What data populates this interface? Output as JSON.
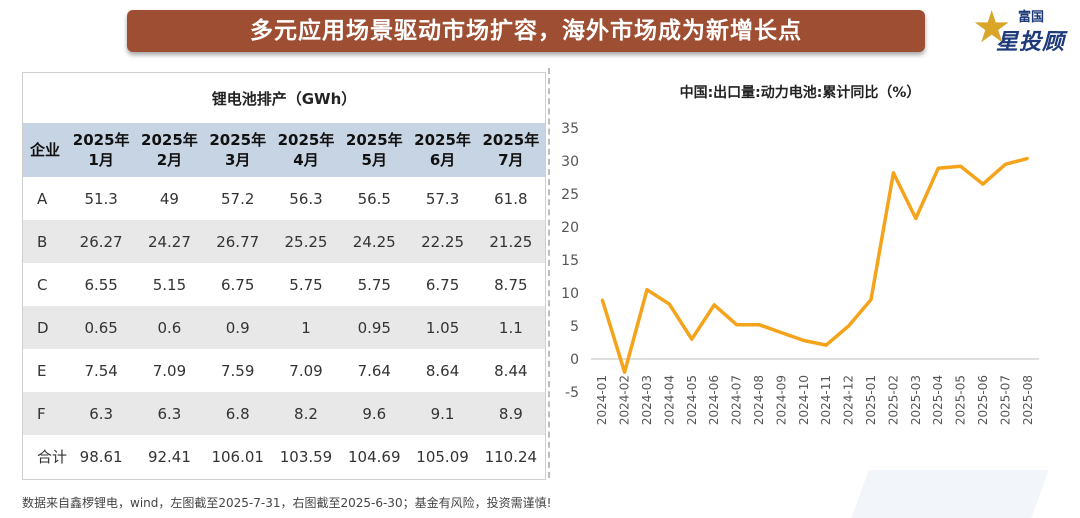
{
  "header": {
    "title": "多元应用场景驱动市场扩容，海外市场成为新增长点"
  },
  "logo": {
    "top_text": "富国",
    "main_text": "星投顾"
  },
  "table": {
    "caption": "锂电池排产（GWh）",
    "corner_header": "企业",
    "columns": [
      {
        "year": "2025年",
        "month": "1月"
      },
      {
        "year": "2025年",
        "month": "2月"
      },
      {
        "year": "2025年",
        "month": "3月"
      },
      {
        "year": "2025年",
        "month": "4月"
      },
      {
        "year": "2025年",
        "month": "5月"
      },
      {
        "year": "2025年",
        "month": "6月"
      },
      {
        "year": "2025年",
        "month": "7月"
      }
    ],
    "rows": [
      {
        "name": "A",
        "values": [
          "51.3",
          "49",
          "57.2",
          "56.3",
          "56.5",
          "57.3",
          "61.8"
        ]
      },
      {
        "name": "B",
        "values": [
          "26.27",
          "24.27",
          "26.77",
          "25.25",
          "24.25",
          "22.25",
          "21.25"
        ]
      },
      {
        "name": "C",
        "values": [
          "6.55",
          "5.15",
          "6.75",
          "5.75",
          "5.75",
          "6.75",
          "8.75"
        ]
      },
      {
        "name": "D",
        "values": [
          "0.65",
          "0.6",
          "0.9",
          "1",
          "0.95",
          "1.05",
          "1.1"
        ]
      },
      {
        "name": "E",
        "values": [
          "7.54",
          "7.09",
          "7.59",
          "7.09",
          "7.64",
          "8.64",
          "8.44"
        ]
      },
      {
        "name": "F",
        "values": [
          "6.3",
          "6.3",
          "6.8",
          "8.2",
          "9.6",
          "9.1",
          "8.9"
        ]
      },
      {
        "name": "合计",
        "values": [
          "98.61",
          "92.41",
          "106.01",
          "103.59",
          "104.69",
          "105.09",
          "110.24"
        ]
      }
    ]
  },
  "chart_data": {
    "type": "line",
    "title": "中国:出口量:动力电池:累计同比（%）",
    "xlabel": "",
    "ylabel": "",
    "x": [
      "2024-01",
      "2024-02",
      "2024-03",
      "2024-04",
      "2024-05",
      "2024-06",
      "2024-07",
      "2024-08",
      "2024-09",
      "2024-10",
      "2024-11",
      "2024-12",
      "2025-01",
      "2025-02",
      "2025-03",
      "2025-04",
      "2025-05",
      "2025-06",
      "2025-07",
      "2025-08"
    ],
    "series": [
      {
        "values": [
          9.0,
          -2.0,
          10.5,
          8.3,
          3.0,
          8.2,
          5.2,
          5.2,
          4.0,
          2.8,
          2.1,
          5.0,
          9.0,
          28.2,
          21.3,
          28.9,
          29.2,
          26.5,
          29.5,
          30.4
        ]
      }
    ],
    "ylim": [
      -5,
      35
    ],
    "yticks": [
      -5,
      0,
      5,
      10,
      15,
      20,
      25,
      30,
      35
    ],
    "line_color": "#f5a31a",
    "grid": false
  },
  "footnote": "数据来自鑫椤锂电，wind，左图截至2025-7-31，右图截至2025-6-30；基金有风险，投资需谨慎!"
}
